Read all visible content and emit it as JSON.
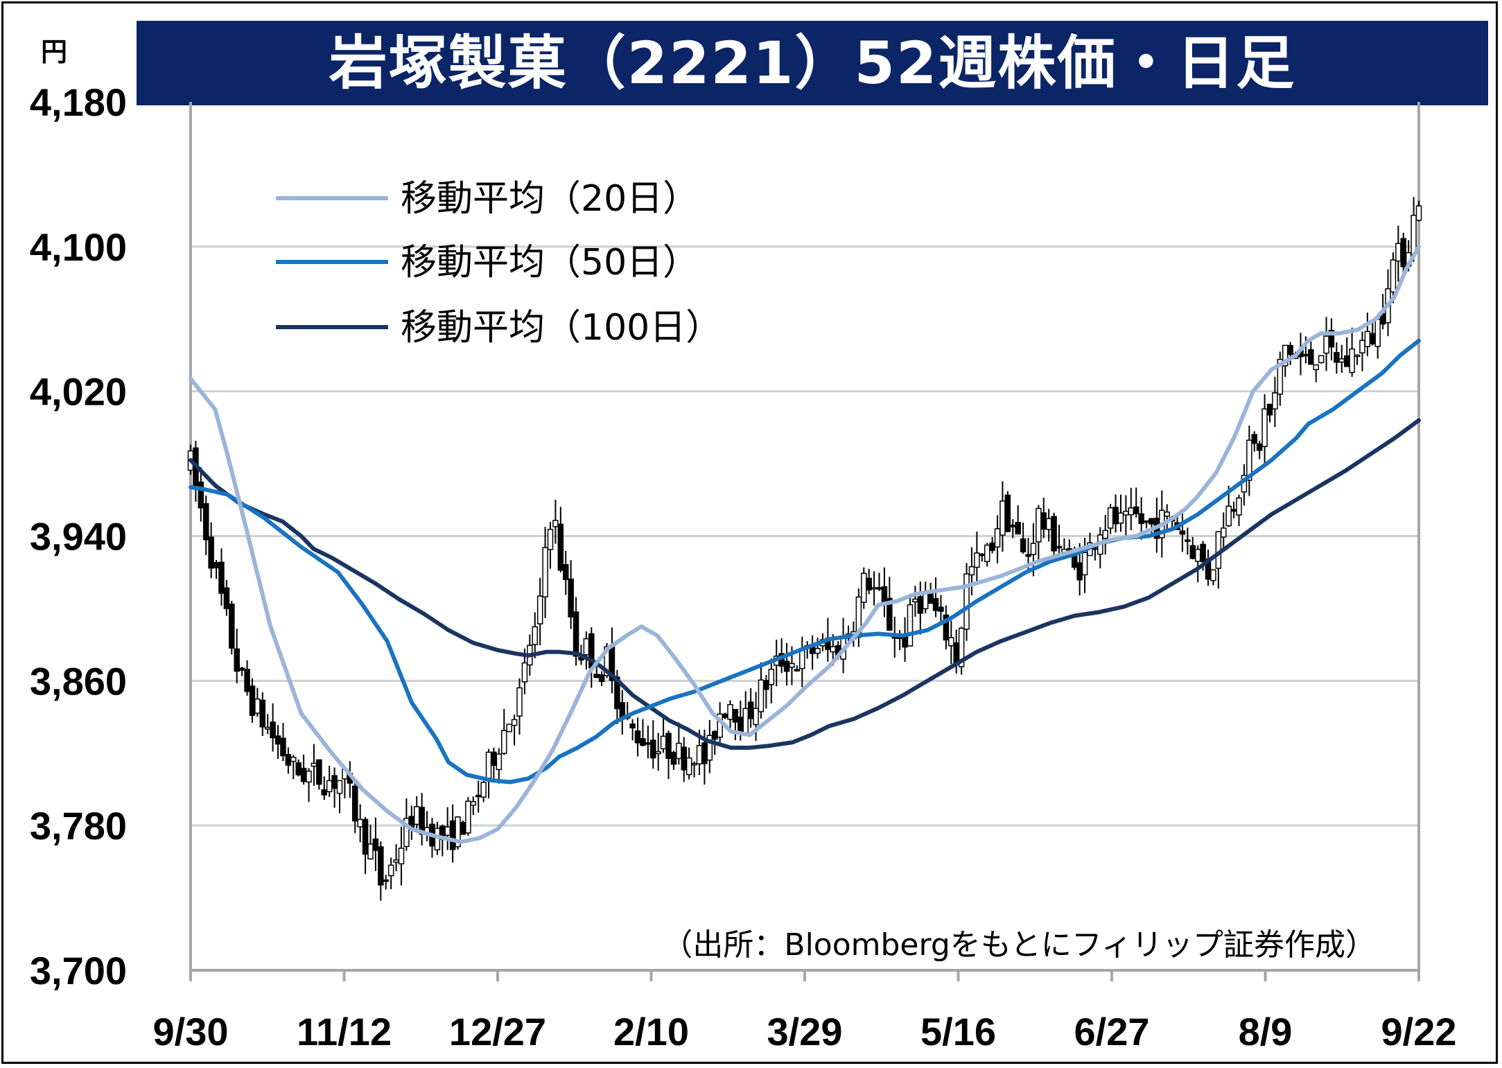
{
  "title": "岩塚製菓（2221）52週株価・日足",
  "unit_label": "円",
  "source_note": "（出所：Bloombergをもとにフィリップ証券作成）",
  "legend": [
    {
      "label": "移動平均（20日）",
      "color": "#9bb5d9"
    },
    {
      "label": "移動平均（50日）",
      "color": "#1a73c0"
    },
    {
      "label": "移動平均（100日）",
      "color": "#1b3560"
    }
  ],
  "colors": {
    "title_bg": "#0b2566",
    "grid": "#d0d0d0",
    "axis": "#a6a6a6",
    "candle": "#000000"
  },
  "chart_data": {
    "type": "line",
    "ylim": [
      3700,
      4180
    ],
    "yticks": [
      "4,180",
      "4,100",
      "4,020",
      "3,940",
      "3,860",
      "3,780",
      "3,700"
    ],
    "xtick_labels": [
      "9/30",
      "11/12",
      "12/27",
      "2/10",
      "3/29",
      "5/16",
      "6/27",
      "8/9",
      "9/22"
    ],
    "grid": true,
    "legend_position": "top-left",
    "series": [
      {
        "name": "移動平均（20日）",
        "color": "#9bb5d9",
        "points": [
          [
            0,
            4027
          ],
          [
            0.02,
            4010
          ],
          [
            0.03,
            3985
          ],
          [
            0.045,
            3945
          ],
          [
            0.065,
            3890
          ],
          [
            0.09,
            3842
          ],
          [
            0.115,
            3820
          ],
          [
            0.14,
            3800
          ],
          [
            0.16,
            3788
          ],
          [
            0.18,
            3778
          ],
          [
            0.2,
            3774
          ],
          [
            0.22,
            3771
          ],
          [
            0.235,
            3773
          ],
          [
            0.25,
            3778
          ],
          [
            0.265,
            3790
          ],
          [
            0.28,
            3805
          ],
          [
            0.295,
            3822
          ],
          [
            0.31,
            3843
          ],
          [
            0.325,
            3865
          ],
          [
            0.34,
            3878
          ],
          [
            0.355,
            3885
          ],
          [
            0.367,
            3890
          ],
          [
            0.38,
            3885
          ],
          [
            0.395,
            3872
          ],
          [
            0.41,
            3858
          ],
          [
            0.425,
            3842
          ],
          [
            0.44,
            3832
          ],
          [
            0.455,
            3830
          ],
          [
            0.47,
            3838
          ],
          [
            0.485,
            3846
          ],
          [
            0.5,
            3856
          ],
          [
            0.52,
            3868
          ],
          [
            0.535,
            3880
          ],
          [
            0.55,
            3892
          ],
          [
            0.56,
            3902
          ],
          [
            0.575,
            3904
          ],
          [
            0.59,
            3908
          ],
          [
            0.61,
            3910
          ],
          [
            0.63,
            3912
          ],
          [
            0.645,
            3915
          ],
          [
            0.66,
            3918
          ],
          [
            0.675,
            3922
          ],
          [
            0.69,
            3926
          ],
          [
            0.71,
            3930
          ],
          [
            0.73,
            3934
          ],
          [
            0.75,
            3938
          ],
          [
            0.77,
            3940
          ],
          [
            0.79,
            3946
          ],
          [
            0.8,
            3950
          ],
          [
            0.81,
            3955
          ],
          [
            0.82,
            3962
          ],
          [
            0.835,
            3975
          ],
          [
            0.85,
            3995
          ],
          [
            0.865,
            4020
          ],
          [
            0.88,
            4032
          ],
          [
            0.89,
            4036
          ],
          [
            0.9,
            4040
          ],
          [
            0.91,
            4048
          ],
          [
            0.92,
            4052
          ],
          [
            0.935,
            4052
          ],
          [
            0.95,
            4054
          ],
          [
            0.965,
            4060
          ],
          [
            0.98,
            4072
          ],
          [
            0.99,
            4088
          ],
          [
            1.0,
            4100
          ]
        ]
      },
      {
        "name": "移動平均（50日）",
        "color": "#1a73c0",
        "points": [
          [
            0,
            3967
          ],
          [
            0.01,
            3966
          ],
          [
            0.03,
            3963
          ],
          [
            0.06,
            3950
          ],
          [
            0.09,
            3934
          ],
          [
            0.12,
            3920
          ],
          [
            0.14,
            3902
          ],
          [
            0.16,
            3882
          ],
          [
            0.17,
            3865
          ],
          [
            0.18,
            3848
          ],
          [
            0.2,
            3828
          ],
          [
            0.21,
            3815
          ],
          [
            0.225,
            3808
          ],
          [
            0.245,
            3805
          ],
          [
            0.26,
            3804
          ],
          [
            0.275,
            3806
          ],
          [
            0.29,
            3812
          ],
          [
            0.3,
            3818
          ],
          [
            0.315,
            3823
          ],
          [
            0.33,
            3829
          ],
          [
            0.345,
            3837
          ],
          [
            0.36,
            3842
          ],
          [
            0.375,
            3846
          ],
          [
            0.39,
            3850
          ],
          [
            0.41,
            3854
          ],
          [
            0.425,
            3858
          ],
          [
            0.44,
            3862
          ],
          [
            0.455,
            3866
          ],
          [
            0.47,
            3870
          ],
          [
            0.485,
            3874
          ],
          [
            0.5,
            3878
          ],
          [
            0.52,
            3883
          ],
          [
            0.54,
            3885
          ],
          [
            0.56,
            3886
          ],
          [
            0.58,
            3885
          ],
          [
            0.6,
            3888
          ],
          [
            0.62,
            3895
          ],
          [
            0.64,
            3904
          ],
          [
            0.66,
            3912
          ],
          [
            0.68,
            3920
          ],
          [
            0.7,
            3926
          ],
          [
            0.72,
            3930
          ],
          [
            0.74,
            3936
          ],
          [
            0.76,
            3939
          ],
          [
            0.78,
            3940
          ],
          [
            0.8,
            3944
          ],
          [
            0.82,
            3952
          ],
          [
            0.84,
            3962
          ],
          [
            0.86,
            3972
          ],
          [
            0.88,
            3982
          ],
          [
            0.9,
            3994
          ],
          [
            0.91,
            4002
          ],
          [
            0.93,
            4010
          ],
          [
            0.95,
            4020
          ],
          [
            0.97,
            4030
          ],
          [
            0.985,
            4040
          ],
          [
            1.0,
            4048
          ]
        ]
      },
      {
        "name": "移動平均（100日）",
        "color": "#1b3560",
        "points": [
          [
            0,
            3982
          ],
          [
            0.02,
            3968
          ],
          [
            0.04,
            3958
          ],
          [
            0.06,
            3952
          ],
          [
            0.075,
            3948
          ],
          [
            0.09,
            3940
          ],
          [
            0.1,
            3933
          ],
          [
            0.115,
            3928
          ],
          [
            0.13,
            3922
          ],
          [
            0.15,
            3914
          ],
          [
            0.17,
            3905
          ],
          [
            0.19,
            3897
          ],
          [
            0.21,
            3888
          ],
          [
            0.23,
            3881
          ],
          [
            0.25,
            3877
          ],
          [
            0.265,
            3875
          ],
          [
            0.275,
            3874
          ],
          [
            0.29,
            3876
          ],
          [
            0.3,
            3876
          ],
          [
            0.315,
            3875
          ],
          [
            0.33,
            3870
          ],
          [
            0.345,
            3862
          ],
          [
            0.36,
            3852
          ],
          [
            0.375,
            3845
          ],
          [
            0.39,
            3838
          ],
          [
            0.405,
            3833
          ],
          [
            0.42,
            3827
          ],
          [
            0.44,
            3823
          ],
          [
            0.455,
            3823
          ],
          [
            0.47,
            3824
          ],
          [
            0.49,
            3826
          ],
          [
            0.505,
            3830
          ],
          [
            0.52,
            3835
          ],
          [
            0.54,
            3839
          ],
          [
            0.56,
            3845
          ],
          [
            0.58,
            3852
          ],
          [
            0.6,
            3860
          ],
          [
            0.62,
            3868
          ],
          [
            0.64,
            3876
          ],
          [
            0.66,
            3882
          ],
          [
            0.68,
            3887
          ],
          [
            0.7,
            3892
          ],
          [
            0.72,
            3896
          ],
          [
            0.74,
            3898
          ],
          [
            0.76,
            3901
          ],
          [
            0.78,
            3906
          ],
          [
            0.8,
            3914
          ],
          [
            0.82,
            3922
          ],
          [
            0.84,
            3932
          ],
          [
            0.86,
            3942
          ],
          [
            0.88,
            3952
          ],
          [
            0.9,
            3960
          ],
          [
            0.92,
            3968
          ],
          [
            0.94,
            3976
          ],
          [
            0.96,
            3985
          ],
          [
            0.98,
            3994
          ],
          [
            1.0,
            4004
          ]
        ]
      }
    ],
    "candlestick_anchors": [
      [
        0,
        3980
      ],
      [
        0.02,
        3920
      ],
      [
        0.04,
        3862
      ],
      [
        0.055,
        3842
      ],
      [
        0.07,
        3826
      ],
      [
        0.085,
        3810
      ],
      [
        0.1,
        3808
      ],
      [
        0.11,
        3805
      ],
      [
        0.125,
        3805
      ],
      [
        0.14,
        3775
      ],
      [
        0.15,
        3762
      ],
      [
        0.155,
        3748
      ],
      [
        0.16,
        3752
      ],
      [
        0.17,
        3768
      ],
      [
        0.18,
        3785
      ],
      [
        0.19,
        3780
      ],
      [
        0.2,
        3775
      ],
      [
        0.21,
        3772
      ],
      [
        0.22,
        3780
      ],
      [
        0.23,
        3790
      ],
      [
        0.24,
        3808
      ],
      [
        0.25,
        3825
      ],
      [
        0.26,
        3840
      ],
      [
        0.27,
        3855
      ],
      [
        0.275,
        3880
      ],
      [
        0.28,
        3885
      ],
      [
        0.285,
        3902
      ],
      [
        0.29,
        3945
      ],
      [
        0.295,
        3955
      ],
      [
        0.3,
        3930
      ],
      [
        0.31,
        3895
      ],
      [
        0.315,
        3872
      ],
      [
        0.32,
        3880
      ],
      [
        0.33,
        3870
      ],
      [
        0.335,
        3852
      ],
      [
        0.34,
        3882
      ],
      [
        0.345,
        3860
      ],
      [
        0.35,
        3840
      ],
      [
        0.36,
        3832
      ],
      [
        0.37,
        3828
      ],
      [
        0.38,
        3822
      ],
      [
        0.39,
        3823
      ],
      [
        0.4,
        3818
      ],
      [
        0.41,
        3822
      ],
      [
        0.42,
        3815
      ],
      [
        0.43,
        3842
      ],
      [
        0.44,
        3850
      ],
      [
        0.45,
        3835
      ],
      [
        0.46,
        3850
      ],
      [
        0.47,
        3860
      ],
      [
        0.48,
        3872
      ],
      [
        0.49,
        3870
      ],
      [
        0.5,
        3872
      ],
      [
        0.51,
        3880
      ],
      [
        0.52,
        3876
      ],
      [
        0.53,
        3880
      ],
      [
        0.54,
        3895
      ],
      [
        0.55,
        3918
      ],
      [
        0.56,
        3906
      ],
      [
        0.57,
        3890
      ],
      [
        0.58,
        3880
      ],
      [
        0.59,
        3905
      ],
      [
        0.6,
        3905
      ],
      [
        0.61,
        3892
      ],
      [
        0.62,
        3882
      ],
      [
        0.625,
        3868
      ],
      [
        0.63,
        3915
      ],
      [
        0.64,
        3925
      ],
      [
        0.65,
        3930
      ],
      [
        0.66,
        3955
      ],
      [
        0.67,
        3945
      ],
      [
        0.68,
        3925
      ],
      [
        0.69,
        3952
      ],
      [
        0.7,
        3940
      ],
      [
        0.71,
        3935
      ],
      [
        0.72,
        3920
      ],
      [
        0.73,
        3930
      ],
      [
        0.74,
        3945
      ],
      [
        0.75,
        3950
      ],
      [
        0.76,
        3945
      ],
      [
        0.77,
        3950
      ],
      [
        0.78,
        3945
      ],
      [
        0.79,
        3948
      ],
      [
        0.8,
        3950
      ],
      [
        0.81,
        3940
      ],
      [
        0.82,
        3930
      ],
      [
        0.83,
        3918
      ],
      [
        0.84,
        3950
      ],
      [
        0.85,
        3960
      ],
      [
        0.86,
        3985
      ],
      [
        0.87,
        3990
      ],
      [
        0.875,
        4010
      ],
      [
        0.88,
        4005
      ],
      [
        0.89,
        4045
      ],
      [
        0.9,
        4040
      ],
      [
        0.91,
        4035
      ],
      [
        0.92,
        4045
      ],
      [
        0.93,
        4040
      ],
      [
        0.94,
        4035
      ],
      [
        0.95,
        4045
      ],
      [
        0.96,
        4048
      ],
      [
        0.97,
        4062
      ],
      [
        0.975,
        4085
      ],
      [
        0.98,
        4092
      ],
      [
        0.99,
        4098
      ],
      [
        1.0,
        4128
      ]
    ],
    "candlestick_spread": 12
  }
}
